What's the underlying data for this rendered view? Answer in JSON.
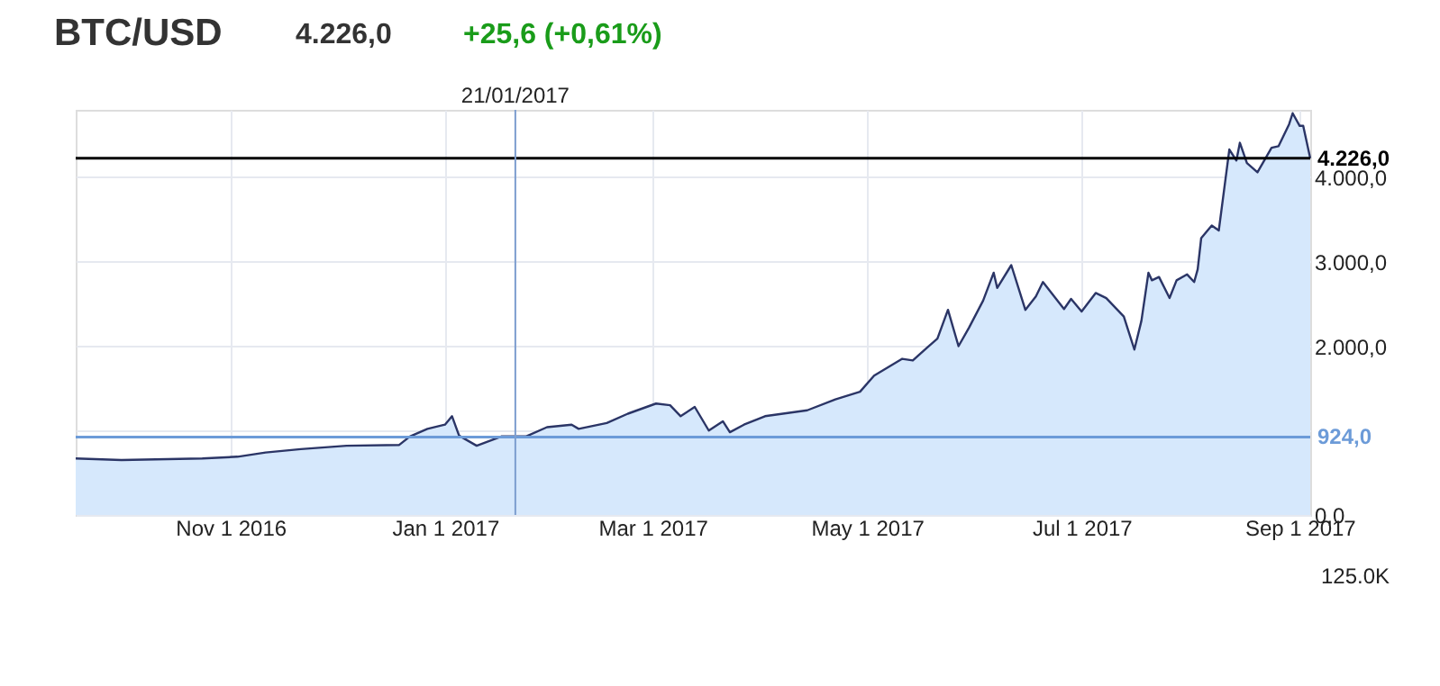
{
  "chart_data": {
    "type": "area",
    "title": "BTC/USD",
    "subtitle": "4.226,0",
    "annotations": [
      "+25,6 (+0,61%)",
      "125.0K"
    ],
    "x": [
      "2016-09-18",
      "2016-10-01",
      "2016-10-24",
      "2016-11-03",
      "2016-11-11",
      "2016-11-21",
      "2016-12-04",
      "2016-12-19",
      "2016-12-22",
      "2016-12-27",
      "2017-01-01",
      "2017-01-03",
      "2017-01-05",
      "2017-01-10",
      "2017-01-17",
      "2017-01-24",
      "2017-01-30",
      "2017-02-06",
      "2017-02-08",
      "2017-02-16",
      "2017-02-22",
      "2017-03-02",
      "2017-03-06",
      "2017-03-09",
      "2017-03-13",
      "2017-03-17",
      "2017-03-21",
      "2017-03-23",
      "2017-03-27",
      "2017-04-02",
      "2017-04-14",
      "2017-04-22",
      "2017-04-29",
      "2017-05-03",
      "2017-05-11",
      "2017-05-14",
      "2017-05-18",
      "2017-05-21",
      "2017-05-24",
      "2017-05-27",
      "2017-05-30",
      "2017-06-03",
      "2017-06-06",
      "2017-06-07",
      "2017-06-11",
      "2017-06-15",
      "2017-06-18",
      "2017-06-20",
      "2017-06-26",
      "2017-06-28",
      "2017-07-01",
      "2017-07-05",
      "2017-07-08",
      "2017-07-13",
      "2017-07-14",
      "2017-07-16",
      "2017-07-18",
      "2017-07-20",
      "2017-07-21",
      "2017-07-23",
      "2017-07-26",
      "2017-07-28",
      "2017-07-31",
      "2017-08-02",
      "2017-08-03",
      "2017-08-04",
      "2017-08-07",
      "2017-08-09",
      "2017-08-12",
      "2017-08-14",
      "2017-08-15",
      "2017-08-17",
      "2017-08-20",
      "2017-08-24",
      "2017-08-26",
      "2017-08-29",
      "2017-08-30",
      "2017-09-01",
      "2017-09-02",
      "2017-09-04"
    ],
    "series": [
      {
        "color": "#2b3566",
        "values": [
          670,
          650,
          670,
          690,
          740,
          780,
          820,
          830,
          930,
          1020,
          1070,
          1170,
          940,
          820,
          930,
          930,
          1040,
          1070,
          1020,
          1090,
          1200,
          1320,
          1300,
          1170,
          1280,
          1000,
          1110,
          980,
          1070,
          1170,
          1240,
          1370,
          1460,
          1650,
          1850,
          1830,
          1980,
          2090,
          2430,
          2000,
          2220,
          2540,
          2870,
          2690,
          2960,
          2430,
          2590,
          2760,
          2440,
          2560,
          2410,
          2630,
          2570,
          2350,
          2220,
          1960,
          2300,
          2870,
          2780,
          2820,
          2570,
          2780,
          2850,
          2760,
          2910,
          3280,
          3430,
          3370,
          4330,
          4200,
          4410,
          4170,
          4060,
          4350,
          4370,
          4630,
          4760,
          4610,
          4610,
          4226
        ]
      }
    ],
    "xlim": [
      "2016-09-18",
      "2017-09-04"
    ],
    "xticks": [
      {
        "value": "2016-11-01",
        "label": "Nov 1 2016"
      },
      {
        "value": "2017-01-01",
        "label": "Jan 1 2017"
      },
      {
        "value": "2017-03-01",
        "label": "Mar 1 2017"
      },
      {
        "value": "2017-05-01",
        "label": "May 1 2017"
      },
      {
        "value": "2017-07-01",
        "label": "Jul 1 2017"
      },
      {
        "value": "2017-09-01",
        "label": "Sep 1 2017"
      }
    ],
    "ylim": [
      0,
      4800
    ],
    "yticks": [
      {
        "value": 0,
        "label": "0,0"
      },
      {
        "value": 1000,
        "label": null
      },
      {
        "value": 2000,
        "label": "2.000,0"
      },
      {
        "value": 3000,
        "label": "3.000,0"
      },
      {
        "value": 4000,
        "label": "4.000,0"
      }
    ],
    "ref_lines": [
      {
        "axis": "y",
        "value": 4226,
        "label": "4.226,0",
        "color": "#000000"
      },
      {
        "axis": "y",
        "value": 924,
        "label": "924,0",
        "color": "#6c9bd8"
      },
      {
        "axis": "x",
        "value": "2017-01-21",
        "label": "21/01/2017",
        "color": "#7d9ecf"
      }
    ],
    "grid": true
  }
}
